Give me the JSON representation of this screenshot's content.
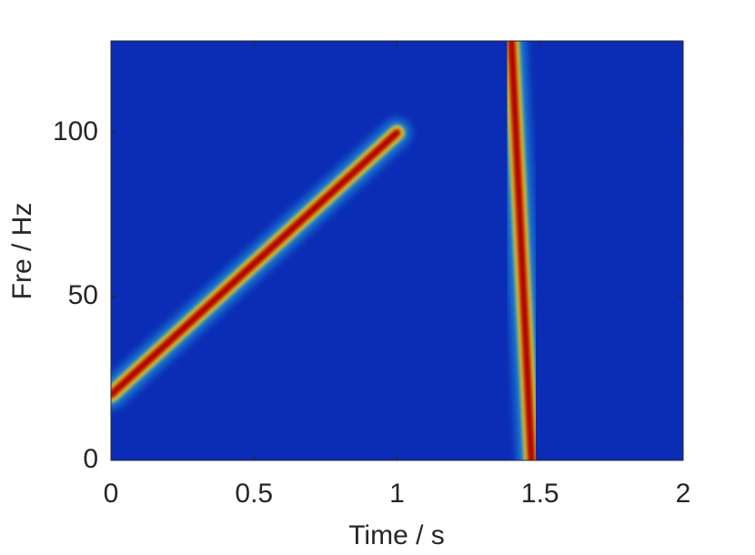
{
  "chart_data": {
    "type": "line",
    "x_label": "Time / s",
    "y_label": "Fre / Hz",
    "background": "#0b2cb5",
    "series": [
      {
        "color": "#b00000",
        "x": [
          0,
          1
        ],
        "values": [
          20,
          100
        ]
      },
      {
        "color": "#b00000",
        "x": [
          1.4,
          1.47
        ],
        "values": [
          128,
          0
        ]
      }
    ],
    "xlim": [
      0,
      2
    ],
    "ylim": [
      0,
      128
    ],
    "xticks": [
      0,
      0.5,
      1,
      1.5,
      2
    ],
    "yticks": [
      0,
      50,
      100
    ]
  }
}
